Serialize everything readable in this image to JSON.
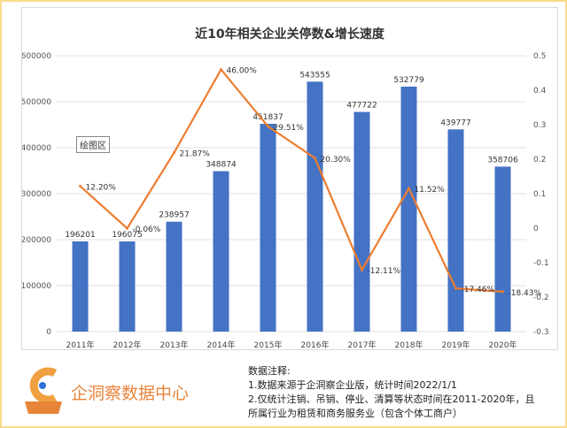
{
  "chart_data": {
    "type": "bar+line",
    "title": "近10年相关企业关停数&增长速度",
    "categories": [
      "2011年",
      "2012年",
      "2013年",
      "2014年",
      "2015年",
      "2016年",
      "2017年",
      "2018年",
      "2019年",
      "2020年"
    ],
    "series": [
      {
        "name": "关停数",
        "type": "bar",
        "axis": "left",
        "color": "#4472c4",
        "values": [
          196201,
          196075,
          238957,
          348874,
          451837,
          543555,
          477722,
          532779,
          439777,
          358706
        ],
        "labels": [
          "196201",
          "196075",
          "238957",
          "348874",
          "451837",
          "543555",
          "477722",
          "532779",
          "439777",
          "358706"
        ]
      },
      {
        "name": "增长速度",
        "type": "line",
        "axis": "right",
        "color": "#ed7d31",
        "values": [
          0.122,
          -0.0006,
          0.2187,
          0.46,
          0.2951,
          0.203,
          -0.1211,
          0.1152,
          -0.1746,
          -0.1843
        ],
        "labels": [
          "12.20%",
          "-0.06%",
          "21.87%",
          "46.00%",
          "29.51%",
          "20.30%",
          "-12.11%",
          "11.52%",
          "-17.46%",
          "-18.43%"
        ]
      }
    ],
    "ylim": [
      0,
      600000
    ],
    "yticks": [
      "0",
      "100000",
      "200000",
      "300000",
      "400000",
      "500000",
      "600000"
    ],
    "y2lim": [
      -0.3,
      0.5
    ],
    "y2ticks": [
      "-0.3",
      "-0.2",
      "-0.1",
      "0",
      "0.1",
      "0.2",
      "0.3",
      "0.4",
      "0.5"
    ],
    "grid": true
  },
  "plot_area_label": "绘图区",
  "footer": {
    "brand": "企洞察数据中心",
    "logo_text": "洞察企业",
    "notes_title": "数据注释:",
    "note1": "1.数据来源于企洞察企业版，统计时间2022/1/1",
    "note2": "2.仅统计注销、吊销、停业、清算等状态时间在2011-2020年，且所属行业为租赁和商务服务业（包含个体工商户）"
  }
}
